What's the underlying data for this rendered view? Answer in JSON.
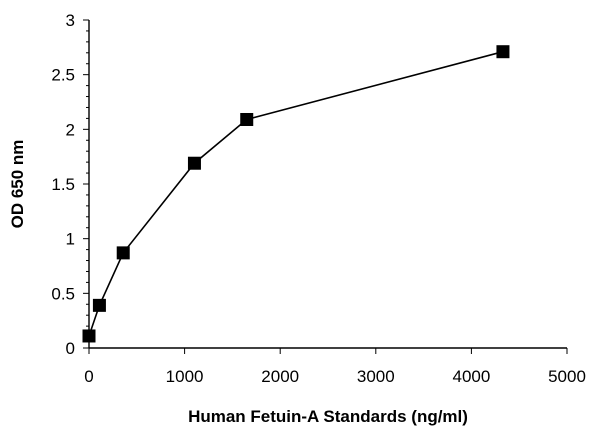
{
  "chart_data": {
    "type": "line",
    "title": "",
    "xlabel": "Human Fetuin-A Standards (ng/ml)",
    "ylabel": "OD 650 nm",
    "xlim": [
      0,
      5000
    ],
    "ylim": [
      0,
      3
    ],
    "x_ticks": [
      "0",
      "1000",
      "2000",
      "3000",
      "4000",
      "5000"
    ],
    "y_ticks": [
      "0",
      "0.5",
      "1",
      "1.5",
      "2",
      "2.5",
      "3"
    ],
    "grid": false,
    "legend": "none",
    "marker": "filled-square",
    "series": [
      {
        "x": [
          0,
          109,
          358,
          1103,
          1650,
          4330
        ],
        "y": [
          0.11,
          0.39,
          0.87,
          1.69,
          2.09,
          2.71
        ],
        "color": "#000000"
      }
    ]
  }
}
